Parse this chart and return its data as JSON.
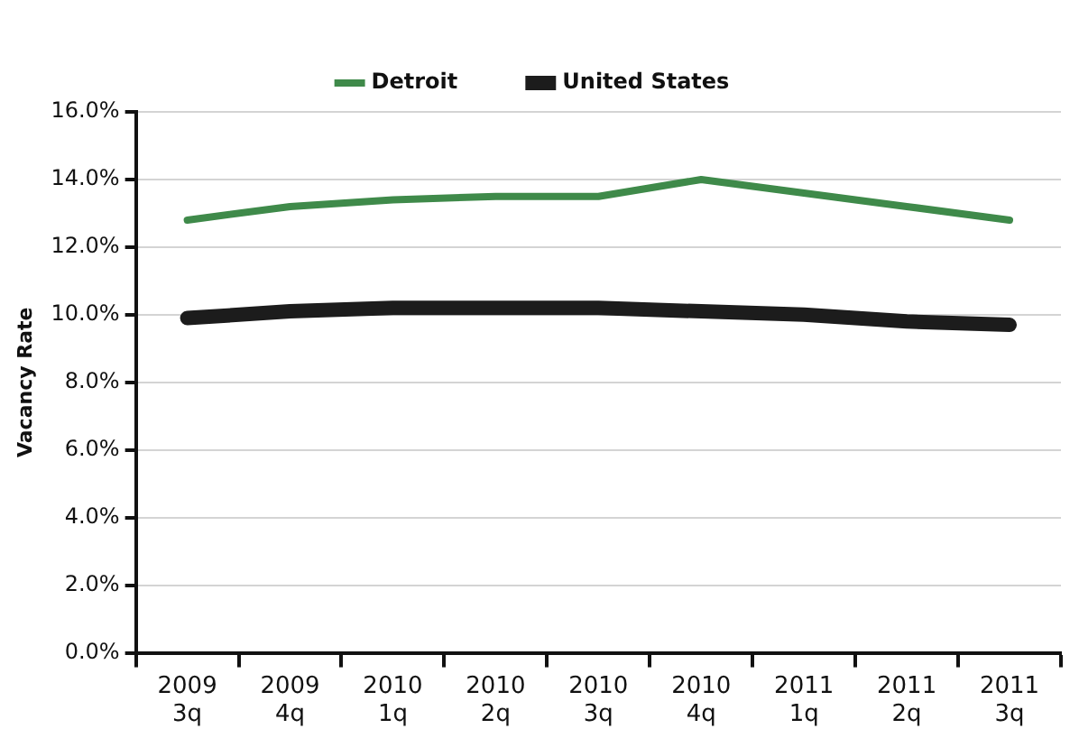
{
  "chart_data": {
    "type": "line",
    "ylabel": "Vacancy Rate",
    "categories": [
      "2009 3q",
      "2009 4q",
      "2010 1q",
      "2010 2q",
      "2010 3q",
      "2010 4q",
      "2011 1q",
      "2011 2q",
      "2011 3q"
    ],
    "series": [
      {
        "name": "Detroit",
        "color": "#3f8a4a",
        "values": [
          12.8,
          13.2,
          13.4,
          13.5,
          13.5,
          14.0,
          13.6,
          13.2,
          12.8
        ]
      },
      {
        "name": "United States",
        "color": "#1c1c1c",
        "values": [
          9.9,
          10.1,
          10.2,
          10.2,
          10.2,
          10.1,
          10.0,
          9.8,
          9.7
        ]
      }
    ],
    "ylim": [
      0,
      16
    ],
    "yticks": [
      {
        "value": 0,
        "label": "0.0%"
      },
      {
        "value": 2,
        "label": "2.0%"
      },
      {
        "value": 4,
        "label": "4.0%"
      },
      {
        "value": 6,
        "label": "6.0%"
      },
      {
        "value": 8,
        "label": "8.0%"
      },
      {
        "value": 10,
        "label": "10.0%"
      },
      {
        "value": 12,
        "label": "12.0%"
      },
      {
        "value": 14,
        "label": "14.0%"
      },
      {
        "value": 16,
        "label": "16.0%"
      }
    ],
    "grid": "y",
    "legend": "top",
    "marker": "none",
    "line_style": "solid"
  }
}
